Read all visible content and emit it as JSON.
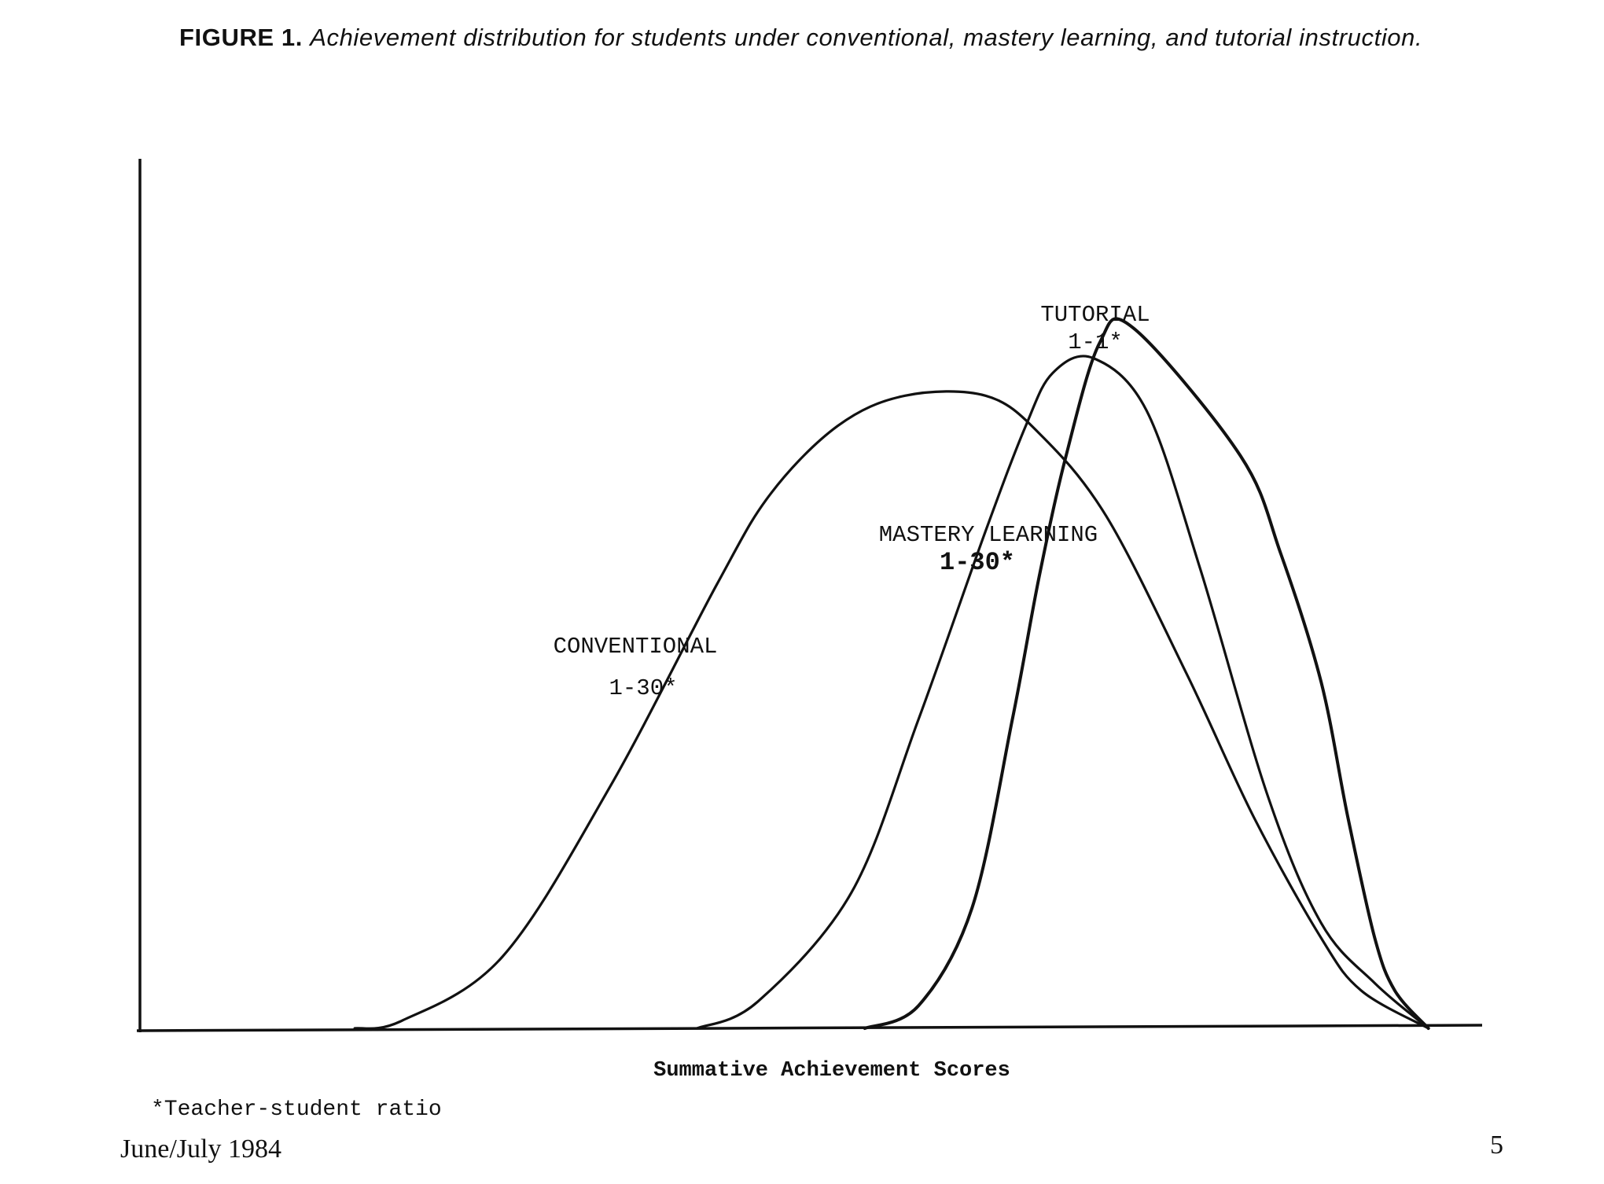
{
  "caption": {
    "label": "FIGURE 1.",
    "text": "Achievement distribution for students under conventional, mastery learning, and tutorial instruction."
  },
  "chart_data": {
    "type": "line",
    "title": "",
    "xlabel": "Summative Achievement Scores",
    "ylabel": "",
    "xlim": [
      0,
      100
    ],
    "ylim": [
      0,
      100
    ],
    "grid": false,
    "legend": "none",
    "series": [
      {
        "name": "CONVENTIONAL",
        "ratio": "1-30*",
        "x": [
          16,
          19.5,
          27,
          35,
          43,
          47,
          52,
          57,
          63,
          67,
          72,
          78,
          83,
          88,
          91,
          96
        ],
        "y": [
          0,
          1,
          9.5,
          32,
          59,
          71,
          80,
          84,
          84,
          79,
          68,
          47,
          28,
          12,
          5,
          0
        ]
      },
      {
        "name": "MASTERY LEARNING",
        "ratio": "1-30*",
        "x": [
          41.5,
          46,
          53,
          58,
          63,
          66,
          68,
          71,
          75,
          79,
          84,
          88,
          92,
          96
        ],
        "y": [
          0,
          3.5,
          18,
          41,
          66,
          80,
          87,
          89,
          82,
          61,
          31,
          14,
          6,
          0
        ]
      },
      {
        "name": "TUTORIAL",
        "ratio": "1-1*",
        "x": [
          54,
          58,
          62,
          65,
          67,
          69,
          71.5,
          74,
          82,
          85,
          88,
          90,
          92,
          93.5,
          96
        ],
        "y": [
          0,
          3,
          16,
          41,
          60,
          76,
          91,
          93,
          76,
          63,
          46,
          28,
          12,
          5,
          0
        ]
      }
    ]
  },
  "labels": {
    "tutorial_name": "TUTORIAL",
    "tutorial_ratio": "1-1*",
    "mastery_name": "MASTERY LEARNING",
    "mastery_ratio": "1-30*",
    "conventional_name": "CONVENTIONAL",
    "conventional_ratio": "1-30*"
  },
  "footnote": "*Teacher-student ratio",
  "footer": {
    "date": "June/July 1984",
    "page": "5"
  },
  "colors": {
    "ink": "#111111"
  }
}
